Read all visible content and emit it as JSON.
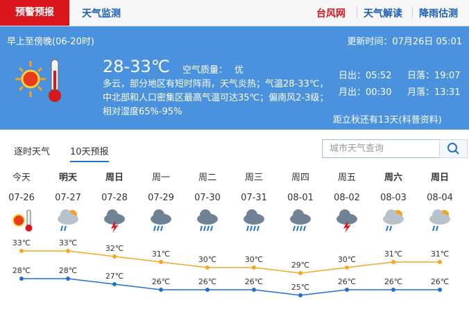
{
  "nav": {
    "tabs": [
      "预警预报",
      "天气监测"
    ],
    "links": [
      "台风网",
      "天气解读",
      "降雨估测"
    ]
  },
  "current": {
    "period": "早上至傍晚(06-20时)",
    "updated": "更新时间：07月26日 05:01",
    "temperature": "28-33℃",
    "air_quality_label": "空气质量：",
    "air_quality": "优",
    "description": "多云，部分地区有短时阵雨，天气炎热；气温28-33℃，中北部和人口密集区最高气温可达35℃；偏南风2-3级；相对湿度65%-95%",
    "sunrise": "日出：05:52",
    "sunset": "日落：19:07",
    "moonrise": "月出：00:30",
    "moonset": "月落：13:31",
    "notice": "距立秋还有13天(科普资料)"
  },
  "forecast_tabs": [
    "逐时天气",
    "10天预报"
  ],
  "search_placeholder": "城市天气查询",
  "chart_data": {
    "type": "line",
    "weekdays": [
      "今天",
      "明天",
      "周日",
      "周一",
      "周二",
      "周三",
      "周四",
      "周五",
      "周六",
      "周日"
    ],
    "categories": [
      "07-26",
      "07-27",
      "07-28",
      "07-29",
      "07-30",
      "07-31",
      "08-01",
      "08-02",
      "08-03",
      "08-04"
    ],
    "series": [
      {
        "color": "#f5a623",
        "values": [
          33,
          33,
          32,
          31,
          30,
          30,
          29,
          30,
          31,
          31
        ],
        "value_labels": [
          "33℃",
          "33℃",
          "32℃",
          "31℃",
          "30℃",
          "30℃",
          "29℃",
          "30℃",
          "31℃",
          "31℃"
        ]
      },
      {
        "color": "#1f6fd1",
        "values": [
          28,
          28,
          27,
          26,
          26,
          26,
          25,
          26,
          26,
          26
        ],
        "value_labels": [
          "28℃",
          "28℃",
          "27℃",
          "26℃",
          "26℃",
          "26℃",
          "25℃",
          "26℃",
          "26℃",
          "26℃"
        ]
      }
    ],
    "ylim": [
      22,
      36
    ]
  }
}
